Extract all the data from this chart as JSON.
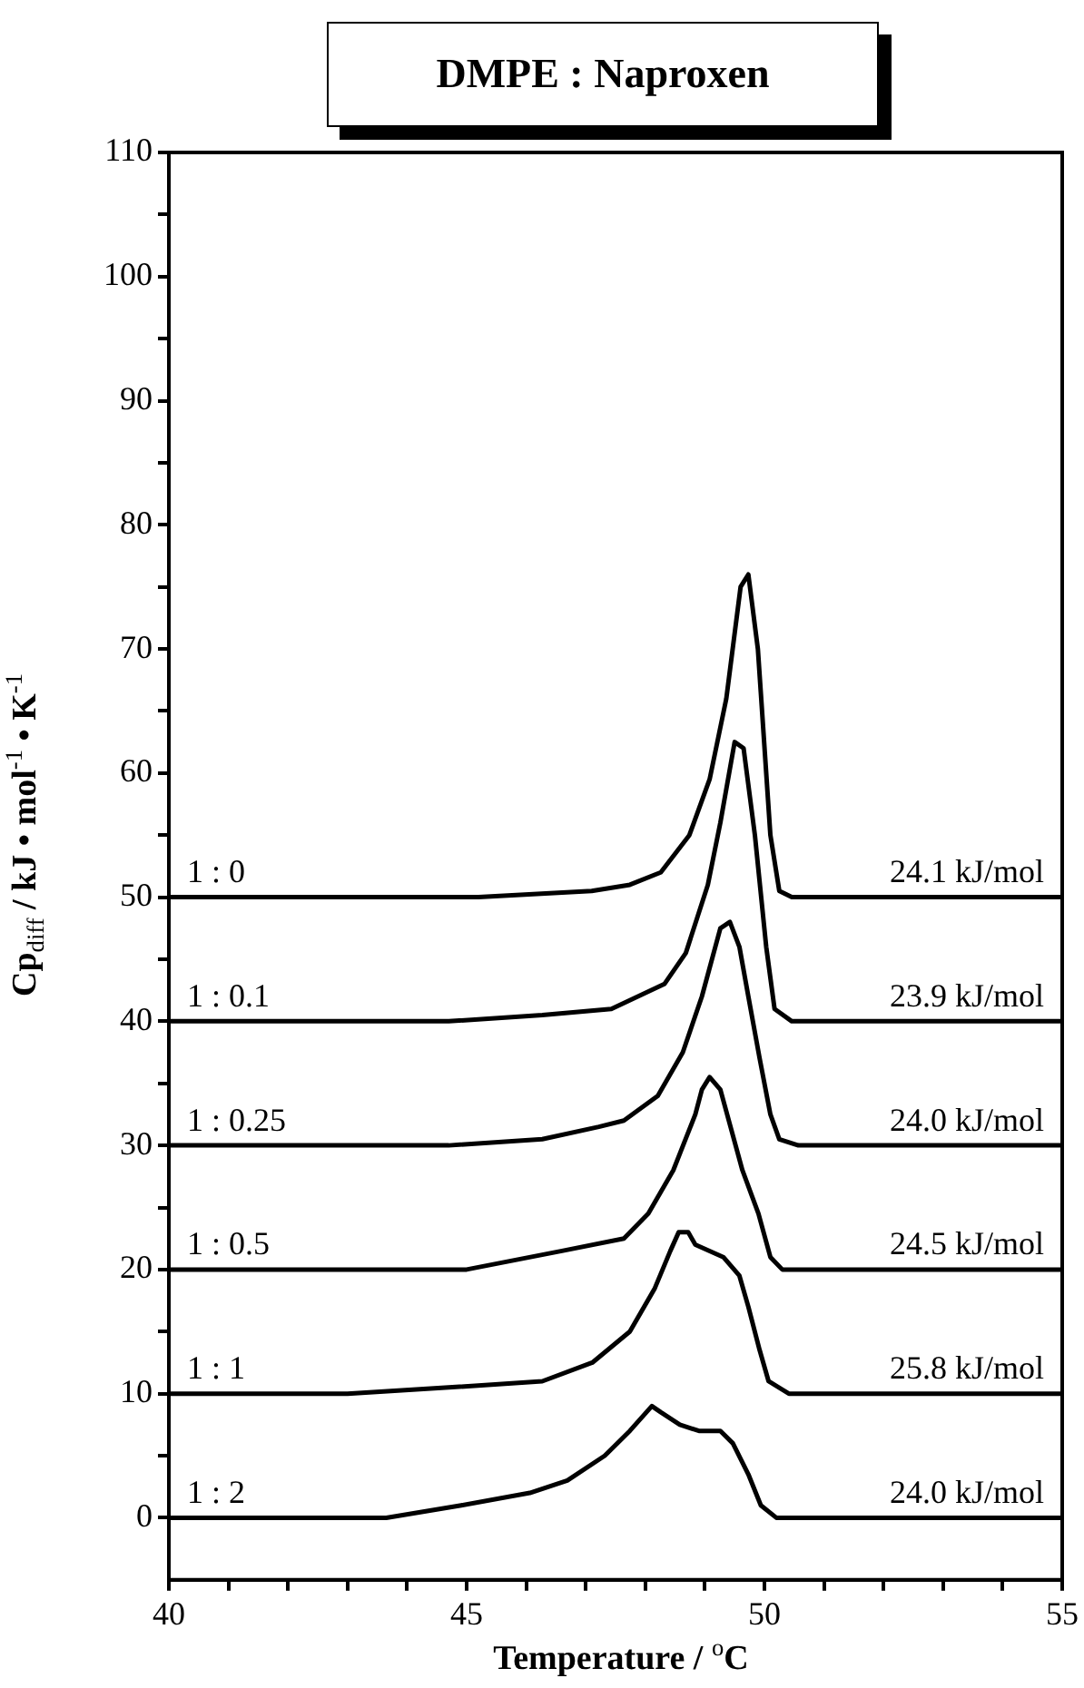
{
  "chart_data": {
    "type": "line",
    "title": "DMPE : Naproxen",
    "xlabel": "Temperature / $^{o}$C",
    "ylabel": "Cp$_{diff}$  / kJ • mol$^{-1}$ • K$^{-1}$",
    "xlim": [
      40,
      55
    ],
    "xticks": [
      40,
      {
        "value": 41,
        "label": null
      },
      {
        "value": 42,
        "label": null
      },
      {
        "value": 43,
        "label": null
      },
      {
        "value": 44,
        "label": null
      },
      45,
      {
        "value": 46,
        "label": null
      },
      {
        "value": 47,
        "label": null
      },
      {
        "value": 48,
        "label": null
      },
      {
        "value": 49,
        "label": null
      },
      50,
      {
        "value": 51,
        "label": null
      },
      {
        "value": 52,
        "label": null
      },
      {
        "value": 53,
        "label": null
      },
      {
        "value": 54,
        "label": null
      },
      55
    ],
    "ylim": [
      -5,
      110
    ],
    "yticks": [
      0,
      {
        "value": 5,
        "label": null
      },
      10,
      {
        "value": 15,
        "label": null
      },
      20,
      {
        "value": 25,
        "label": null
      },
      30,
      {
        "value": 35,
        "label": null
      },
      40,
      {
        "value": 45,
        "label": null
      },
      50,
      {
        "value": 55,
        "label": null
      },
      60,
      {
        "value": 65,
        "label": null
      },
      70,
      {
        "value": 75,
        "label": null
      },
      80,
      {
        "value": 85,
        "label": null
      },
      90,
      {
        "value": 95,
        "label": null
      },
      100,
      {
        "value": 105,
        "label": null
      },
      110
    ],
    "grid": false,
    "legend": false,
    "marker": "none",
    "line_style": "solid",
    "series": [
      {
        "name": "1 : 0",
        "color": "#000000",
        "x": [
          40,
          45.2,
          47.1,
          47.74,
          48.26,
          48.74,
          49.08,
          49.36,
          49.6,
          49.73,
          49.89,
          50.1,
          50.25,
          50.46,
          55
        ],
        "values": [
          50,
          50,
          50.5,
          51,
          52,
          55,
          59.5,
          66,
          75,
          76,
          70,
          55,
          50.5,
          50,
          50
        ]
      },
      {
        "name": "1 : 0.1",
        "color": "#000000",
        "x": [
          40,
          44.7,
          46.27,
          47.43,
          48.32,
          48.68,
          49.05,
          49.26,
          49.5,
          49.65,
          49.84,
          50.03,
          50.17,
          50.46,
          55
        ],
        "values": [
          40,
          40,
          40.5,
          41,
          43,
          45.5,
          51,
          56,
          62.5,
          62,
          55,
          46,
          41,
          40,
          40
        ]
      },
      {
        "name": "1 : 0.25",
        "color": "#000000",
        "x": [
          40,
          44.7,
          46.27,
          47.22,
          47.64,
          48.21,
          48.63,
          48.95,
          49.26,
          49.42,
          49.58,
          49.73,
          49.92,
          50.1,
          50.25,
          50.57,
          55
        ],
        "values": [
          30,
          30,
          30.5,
          31.5,
          32,
          34,
          37.5,
          42,
          47.5,
          48,
          46,
          42,
          37,
          32.5,
          30.5,
          30,
          30
        ]
      },
      {
        "name": "1 : 0.5",
        "color": "#000000",
        "x": [
          40,
          43.67,
          45.0,
          46.6,
          47.64,
          48.05,
          48.47,
          48.84,
          48.95,
          49.08,
          49.26,
          49.63,
          49.9,
          50.1,
          50.3,
          51.0,
          55
        ],
        "values": [
          20,
          20,
          20,
          21.5,
          22.5,
          24.5,
          28,
          32.5,
          34.5,
          35.5,
          34.5,
          28,
          24.5,
          21,
          20,
          20,
          20
        ]
      },
      {
        "name": "1 : 1",
        "color": "#000000",
        "x": [
          40,
          43.0,
          44.7,
          46.27,
          47.11,
          47.74,
          48.16,
          48.42,
          48.56,
          48.72,
          48.84,
          49.31,
          49.58,
          49.73,
          49.92,
          50.07,
          50.41,
          51.0,
          55
        ],
        "values": [
          10,
          10,
          10.5,
          11,
          12.5,
          15,
          18.5,
          21.5,
          23,
          23,
          22,
          21,
          19.5,
          17,
          13.5,
          11,
          10,
          10,
          10
        ]
      },
      {
        "name": "1 : 2",
        "color": "#000000",
        "x": [
          40,
          42.08,
          43.65,
          44.91,
          46.06,
          46.69,
          47.32,
          47.74,
          48.11,
          48.26,
          48.58,
          48.9,
          49.26,
          49.47,
          49.73,
          49.94,
          50.2,
          50.67,
          55
        ],
        "values": [
          0,
          0,
          0,
          1,
          2,
          3,
          5,
          7,
          9,
          8.5,
          7.5,
          7,
          7,
          6,
          3.5,
          1,
          0,
          0,
          0
        ]
      }
    ],
    "annotations": [
      "24.1 kJ/mol",
      "23.9 kJ/mol",
      "24.0 kJ/mol",
      "24.5 kJ/mol",
      "25.8 kJ/mol",
      "24.0 kJ/mol"
    ]
  }
}
